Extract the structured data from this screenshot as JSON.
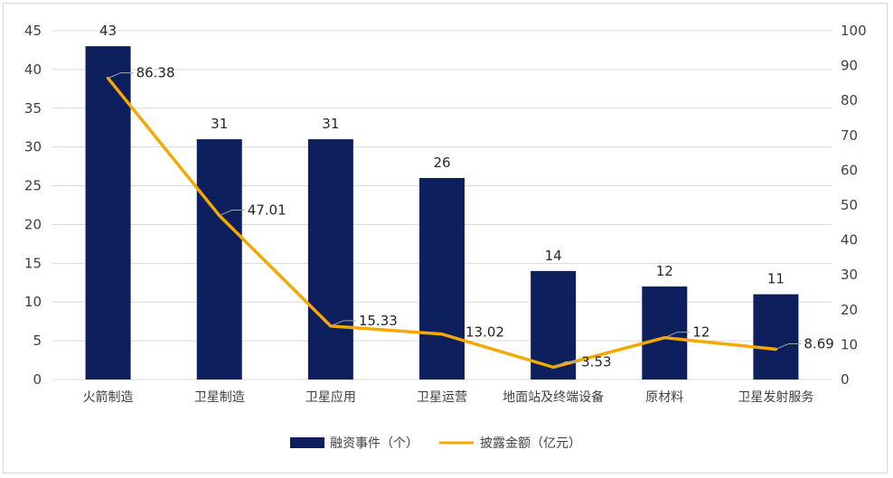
{
  "chart_data": {
    "type": "bar+line",
    "categories": [
      "火箭制造",
      "卫星制造",
      "卫星应用",
      "卫星运营",
      "地面站及终端设备",
      "原材料",
      "卫星发射服务"
    ],
    "series": [
      {
        "name": "融资事件（个）",
        "type": "bar",
        "axis": "left",
        "values": [
          43,
          31,
          31,
          26,
          14,
          12,
          11
        ],
        "labels": [
          "43",
          "31",
          "31",
          "26",
          "14",
          "12",
          "11"
        ]
      },
      {
        "name": "披露金额（亿元）",
        "type": "line",
        "axis": "right",
        "values": [
          86.38,
          47.01,
          15.33,
          13.02,
          3.53,
          12,
          8.69
        ],
        "labels": [
          "86.38",
          "47.01",
          "15.33",
          "13.02",
          "3.53",
          "12",
          "8.69"
        ]
      }
    ],
    "y_left": {
      "ylim": [
        0,
        45
      ],
      "ticks": [
        "0",
        "5",
        "10",
        "15",
        "20",
        "25",
        "30",
        "35",
        "40",
        "45"
      ]
    },
    "y_right": {
      "ylim": [
        0,
        100
      ],
      "ticks": [
        "0",
        "10",
        "20",
        "30",
        "40",
        "50",
        "60",
        "70",
        "80",
        "90",
        "100"
      ]
    },
    "gridlines": true,
    "legend_position": "bottom",
    "colors": {
      "bar": "#0d1f5c",
      "line": "#f5a800",
      "grid": "#d9d9d9",
      "leader": "#a6a6a6"
    }
  }
}
